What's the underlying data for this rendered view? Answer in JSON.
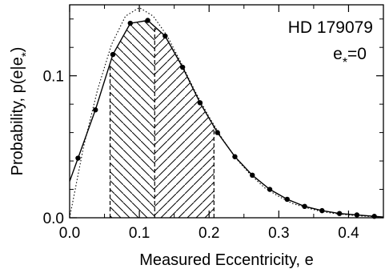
{
  "chart_data": {
    "type": "line",
    "title": "",
    "xlabel": "Measured Eccentricity, e",
    "ylabel": "Probability, p(e|e*)",
    "ylabel_parts": {
      "prefix": "Probability, p(e|e",
      "subscript": "*",
      "suffix": ")"
    },
    "xlim": [
      0.0,
      0.45
    ],
    "ylim": [
      0.0,
      0.15
    ],
    "x_ticks": [
      {
        "value": 0.0,
        "label": "0.0"
      },
      {
        "value": 0.1,
        "label": "0.1"
      },
      {
        "value": 0.2,
        "label": "0.2"
      },
      {
        "value": 0.3,
        "label": "0.3"
      },
      {
        "value": 0.4,
        "label": "0.4"
      }
    ],
    "y_ticks": [
      {
        "value": 0.0,
        "label": "0.0"
      },
      {
        "value": 0.1,
        "label": "0.1"
      }
    ],
    "x_minor_step": 0.05,
    "y_minor_step": 0.02,
    "grid": false,
    "annotation": {
      "line1": "HD 179079",
      "line2_prefix": "e",
      "line2_subscript": "*",
      "line2_suffix": "=0"
    },
    "series": [
      {
        "style": "solid-with-points",
        "x": [
          0.012,
          0.037,
          0.062,
          0.087,
          0.112,
          0.137,
          0.162,
          0.187,
          0.212,
          0.237,
          0.262,
          0.287,
          0.312,
          0.337,
          0.362,
          0.387,
          0.412,
          0.437
        ],
        "y": [
          0.042,
          0.076,
          0.115,
          0.137,
          0.139,
          0.128,
          0.106,
          0.081,
          0.06,
          0.043,
          0.03,
          0.02,
          0.013,
          0.008,
          0.005,
          0.003,
          0.002,
          0.001
        ]
      },
      {
        "style": "dotted",
        "x": [
          0.0,
          0.02,
          0.04,
          0.06,
          0.08,
          0.1,
          0.12,
          0.14,
          0.16,
          0.18,
          0.2,
          0.22,
          0.24,
          0.26,
          0.28,
          0.3,
          0.32,
          0.34,
          0.36,
          0.38,
          0.4,
          0.42,
          0.44,
          0.45
        ],
        "y": [
          0.0,
          0.05,
          0.09,
          0.122,
          0.142,
          0.148,
          0.142,
          0.128,
          0.109,
          0.089,
          0.071,
          0.055,
          0.041,
          0.03,
          0.021,
          0.015,
          0.01,
          0.007,
          0.0045,
          0.003,
          0.002,
          0.0012,
          0.0007,
          0.0005
        ]
      }
    ],
    "shaded_regions": [
      {
        "from": 0.058,
        "to": 0.122,
        "hatch": "backslash"
      },
      {
        "from": 0.122,
        "to": 0.207,
        "hatch": "slash"
      }
    ],
    "boundary_lines": [
      0.058,
      0.122,
      0.207
    ]
  }
}
